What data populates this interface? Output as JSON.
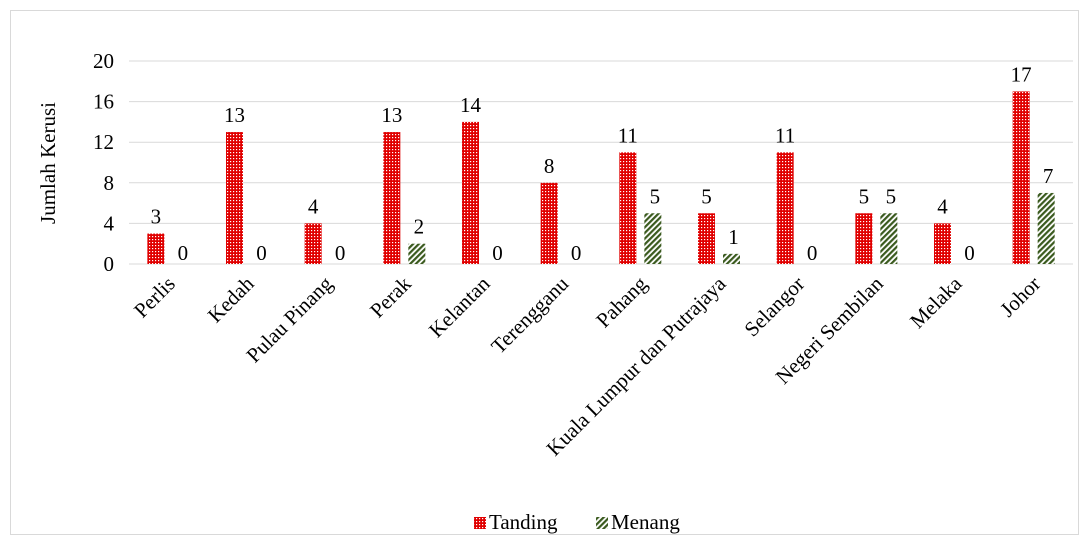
{
  "chart_data": {
    "type": "bar",
    "title": "",
    "xlabel": "",
    "ylabel": "Jumlah Kerusi",
    "ylim": [
      0,
      20
    ],
    "yticks": [
      0,
      4,
      8,
      12,
      16,
      20
    ],
    "grid": true,
    "legend_position": "bottom",
    "categories": [
      "Perlis",
      "Kedah",
      "Pulau Pinang",
      "Perak",
      "Kelantan",
      "Terengganu",
      "Pahang",
      "Kuala Lumpur dan Putrajaya",
      "Selangor",
      "Negeri Sembilan",
      "Melaka",
      "Johor"
    ],
    "series": [
      {
        "name": "Tanding",
        "color": "#e00000",
        "pattern": "red-dotted",
        "values": [
          3,
          13,
          4,
          13,
          14,
          8,
          11,
          5,
          11,
          5,
          4,
          17
        ]
      },
      {
        "name": "Menang",
        "color": "#3a5a1e",
        "pattern": "green-diagonal-stripes",
        "values": [
          0,
          0,
          0,
          2,
          0,
          0,
          5,
          1,
          0,
          5,
          0,
          7
        ]
      }
    ]
  }
}
